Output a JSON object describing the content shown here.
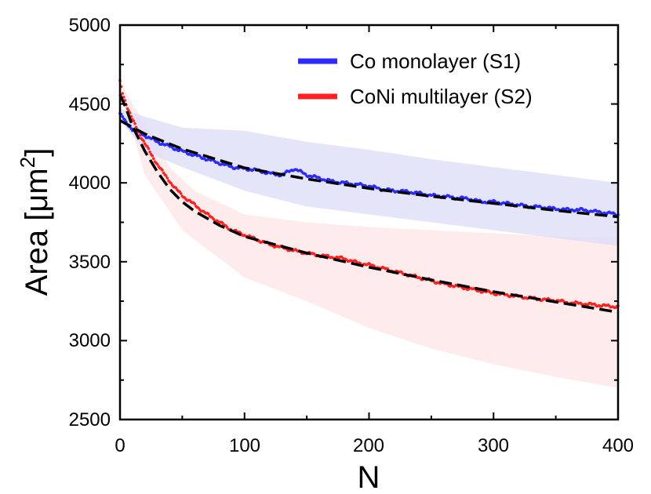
{
  "chart_data": {
    "type": "scatter",
    "xlabel": "N",
    "ylabel_main": "Area [μm",
    "ylabel_sup": "2",
    "ylabel_close": "]",
    "xlim": [
      0,
      400
    ],
    "ylim": [
      2500,
      5000
    ],
    "x_ticks": [
      "0",
      "100",
      "200",
      "300",
      "400"
    ],
    "y_ticks": [
      "2500",
      "3000",
      "3500",
      "4000",
      "4500",
      "5000"
    ],
    "legend_position": "top-right",
    "series": [
      {
        "name": "Co monolayer (S1)",
        "color": "#2b2bff",
        "band_color": "#dcdcf8",
        "points": [
          [
            0,
            4440
          ],
          [
            5,
            4380
          ],
          [
            10,
            4340
          ],
          [
            20,
            4300
          ],
          [
            30,
            4260
          ],
          [
            40,
            4230
          ],
          [
            50,
            4200
          ],
          [
            60,
            4175
          ],
          [
            70,
            4150
          ],
          [
            80,
            4125
          ],
          [
            90,
            4100
          ],
          [
            100,
            4090
          ],
          [
            110,
            4080
          ],
          [
            120,
            4060
          ],
          [
            130,
            4050
          ],
          [
            140,
            4090
          ],
          [
            150,
            4050
          ],
          [
            160,
            4030
          ],
          [
            170,
            4010
          ],
          [
            180,
            4000
          ],
          [
            190,
            3990
          ],
          [
            200,
            3980
          ],
          [
            210,
            3960
          ],
          [
            220,
            3950
          ],
          [
            230,
            3945
          ],
          [
            240,
            3935
          ],
          [
            250,
            3920
          ],
          [
            260,
            3915
          ],
          [
            270,
            3905
          ],
          [
            280,
            3900
          ],
          [
            290,
            3880
          ],
          [
            300,
            3880
          ],
          [
            310,
            3870
          ],
          [
            320,
            3860
          ],
          [
            330,
            3850
          ],
          [
            340,
            3845
          ],
          [
            350,
            3835
          ],
          [
            360,
            3830
          ],
          [
            370,
            3830
          ],
          [
            380,
            3820
          ],
          [
            390,
            3810
          ],
          [
            400,
            3800
          ]
        ],
        "band_upper": [
          [
            0,
            4470
          ],
          [
            20,
            4420
          ],
          [
            50,
            4350
          ],
          [
            100,
            4330
          ],
          [
            150,
            4260
          ],
          [
            200,
            4210
          ],
          [
            250,
            4150
          ],
          [
            300,
            4100
          ],
          [
            350,
            4050
          ],
          [
            400,
            4000
          ]
        ],
        "band_lower": [
          [
            0,
            4400
          ],
          [
            20,
            4200
          ],
          [
            50,
            4100
          ],
          [
            100,
            3950
          ],
          [
            150,
            3850
          ],
          [
            200,
            3800
          ],
          [
            250,
            3750
          ],
          [
            300,
            3700
          ],
          [
            350,
            3650
          ],
          [
            400,
            3600
          ]
        ],
        "fit": [
          [
            0,
            4395
          ],
          [
            20,
            4310
          ],
          [
            50,
            4215
          ],
          [
            100,
            4095
          ],
          [
            150,
            4025
          ],
          [
            200,
            3965
          ],
          [
            250,
            3915
          ],
          [
            300,
            3870
          ],
          [
            350,
            3825
          ],
          [
            400,
            3785
          ]
        ]
      },
      {
        "name": "CoNi multilayer (S2)",
        "color": "#ff2222",
        "band_color": "#fde6e6",
        "points": [
          [
            0,
            4640
          ],
          [
            2,
            4570
          ],
          [
            5,
            4500
          ],
          [
            10,
            4400
          ],
          [
            15,
            4320
          ],
          [
            20,
            4250
          ],
          [
            25,
            4180
          ],
          [
            30,
            4120
          ],
          [
            35,
            4060
          ],
          [
            40,
            4010
          ],
          [
            45,
            3960
          ],
          [
            50,
            3920
          ],
          [
            60,
            3860
          ],
          [
            70,
            3800
          ],
          [
            80,
            3750
          ],
          [
            90,
            3700
          ],
          [
            100,
            3670
          ],
          [
            110,
            3640
          ],
          [
            120,
            3610
          ],
          [
            130,
            3590
          ],
          [
            140,
            3570
          ],
          [
            150,
            3555
          ],
          [
            160,
            3540
          ],
          [
            170,
            3530
          ],
          [
            180,
            3520
          ],
          [
            190,
            3495
          ],
          [
            200,
            3480
          ],
          [
            210,
            3460
          ],
          [
            220,
            3440
          ],
          [
            230,
            3420
          ],
          [
            240,
            3400
          ],
          [
            250,
            3380
          ],
          [
            260,
            3360
          ],
          [
            270,
            3345
          ],
          [
            280,
            3330
          ],
          [
            290,
            3315
          ],
          [
            300,
            3300
          ],
          [
            310,
            3290
          ],
          [
            320,
            3280
          ],
          [
            330,
            3270
          ],
          [
            340,
            3260
          ],
          [
            350,
            3255
          ],
          [
            360,
            3240
          ],
          [
            370,
            3235
          ],
          [
            380,
            3228
          ],
          [
            390,
            3220
          ],
          [
            400,
            3215
          ]
        ],
        "band_upper": [
          [
            0,
            4650
          ],
          [
            10,
            4500
          ],
          [
            20,
            4380
          ],
          [
            40,
            4100
          ],
          [
            60,
            3950
          ],
          [
            100,
            3800
          ],
          [
            150,
            3750
          ],
          [
            200,
            3720
          ],
          [
            250,
            3700
          ],
          [
            300,
            3680
          ],
          [
            350,
            3660
          ],
          [
            400,
            3650
          ]
        ],
        "band_lower": [
          [
            0,
            4600
          ],
          [
            20,
            4050
          ],
          [
            50,
            3700
          ],
          [
            100,
            3400
          ],
          [
            150,
            3250
          ],
          [
            200,
            3080
          ],
          [
            250,
            2950
          ],
          [
            300,
            2850
          ],
          [
            350,
            2770
          ],
          [
            400,
            2700
          ]
        ],
        "fit": [
          [
            0,
            4560
          ],
          [
            5,
            4470
          ],
          [
            10,
            4360
          ],
          [
            20,
            4200
          ],
          [
            30,
            4070
          ],
          [
            40,
            3960
          ],
          [
            50,
            3880
          ],
          [
            60,
            3820
          ],
          [
            80,
            3730
          ],
          [
            100,
            3660
          ],
          [
            150,
            3555
          ],
          [
            200,
            3465
          ],
          [
            250,
            3385
          ],
          [
            300,
            3310
          ],
          [
            350,
            3245
          ],
          [
            400,
            3180
          ]
        ]
      }
    ]
  }
}
